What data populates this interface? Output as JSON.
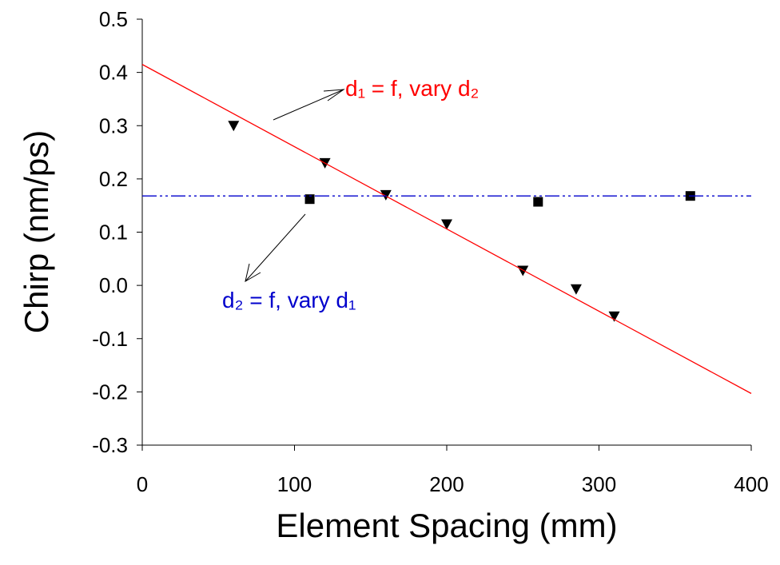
{
  "chart_data": {
    "type": "scatter",
    "xlabel": "Element Spacing (mm)",
    "ylabel": "Chirp (nm/ps)",
    "xlim": [
      0,
      400
    ],
    "xticks": [
      0,
      100,
      200,
      300,
      400
    ],
    "ylim": [
      -0.3,
      0.5
    ],
    "yticks": [
      {
        "value": -0.3,
        "label": "-0.3"
      },
      {
        "value": -0.2,
        "label": "-0.2"
      },
      {
        "value": -0.1,
        "label": "-0.1"
      },
      {
        "value": 0,
        "label": "0.0"
      },
      {
        "value": 0.1,
        "label": "0.1"
      },
      {
        "value": 0.2,
        "label": "0.2"
      },
      {
        "value": 0.3,
        "label": "0.3"
      },
      {
        "value": 0.4,
        "label": "0.4"
      },
      {
        "value": 0.5,
        "label": "0.5"
      }
    ],
    "series": [
      {
        "marker": "triangle-down",
        "color": "#000000",
        "x": [
          60,
          120,
          160,
          200,
          250,
          285,
          310
        ],
        "values": [
          0.3,
          0.23,
          0.17,
          0.115,
          0.028,
          -0.007,
          -0.058
        ]
      },
      {
        "marker": "square",
        "color": "#000000",
        "x": [
          110,
          260,
          360
        ],
        "values": [
          0.162,
          0.157,
          0.168
        ]
      },
      {
        "line": "solid",
        "color": "#ff0000",
        "x": [
          0,
          400
        ],
        "values": [
          0.415,
          -0.203
        ]
      },
      {
        "line": "dash-dot-dot",
        "color": "#0000cc",
        "x": [
          0,
          400
        ],
        "values": [
          0.168,
          0.168
        ]
      }
    ],
    "annotations": [
      {
        "text": "d₁ = f, vary d₂",
        "color": "#ff0000"
      },
      {
        "text": "d₂ = f, vary d₁",
        "color": "#0000cc"
      }
    ]
  }
}
